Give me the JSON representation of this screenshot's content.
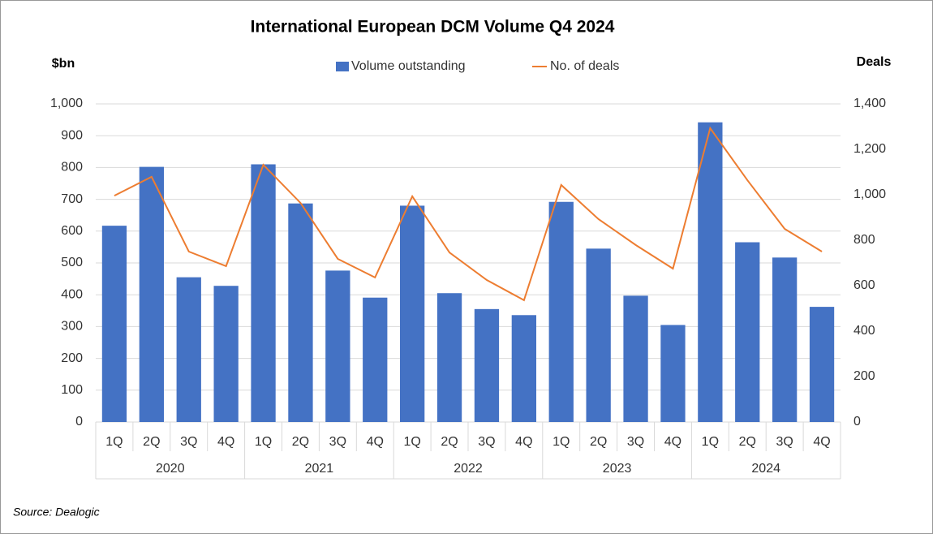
{
  "chart_data": {
    "type": "bar_line",
    "title": "International European DCM Volume Q4 2024",
    "y_label": "$bn",
    "y2_label": "Deals",
    "source": "Source: Dealogic",
    "categories": [
      "1Q",
      "2Q",
      "3Q",
      "4Q",
      "1Q",
      "2Q",
      "3Q",
      "4Q",
      "1Q",
      "2Q",
      "3Q",
      "4Q",
      "1Q",
      "2Q",
      "3Q",
      "4Q",
      "1Q",
      "2Q",
      "3Q",
      "4Q"
    ],
    "groups": [
      "2020",
      "2021",
      "2022",
      "2023",
      "2024"
    ],
    "series": [
      {
        "name": "Volume outstanding",
        "type": "bar",
        "color": "#4472c4",
        "values": [
          617,
          802,
          455,
          428,
          810,
          687,
          476,
          391,
          680,
          405,
          355,
          336,
          692,
          545,
          397,
          305,
          942,
          565,
          517,
          362
        ]
      },
      {
        "name": "No. of deals",
        "type": "line",
        "axis": "y2",
        "color": "#ed7d31",
        "values": [
          996,
          1079,
          750,
          686,
          1132,
          964,
          718,
          636,
          993,
          746,
          625,
          536,
          1043,
          893,
          779,
          675,
          1293,
          1064,
          850,
          750
        ]
      }
    ],
    "ylim": [
      0,
      1000
    ],
    "yticks": [
      0,
      100,
      200,
      300,
      400,
      500,
      600,
      700,
      800,
      900,
      {
        "value": 1000,
        "label": "1,000"
      }
    ],
    "y2lim": [
      0,
      1400
    ],
    "y2ticks": [
      0,
      200,
      400,
      600,
      800,
      {
        "value": 1000,
        "label": "1,000"
      },
      {
        "value": 1200,
        "label": "1,200"
      },
      {
        "value": 1400,
        "label": "1,400"
      }
    ],
    "grid": true
  }
}
